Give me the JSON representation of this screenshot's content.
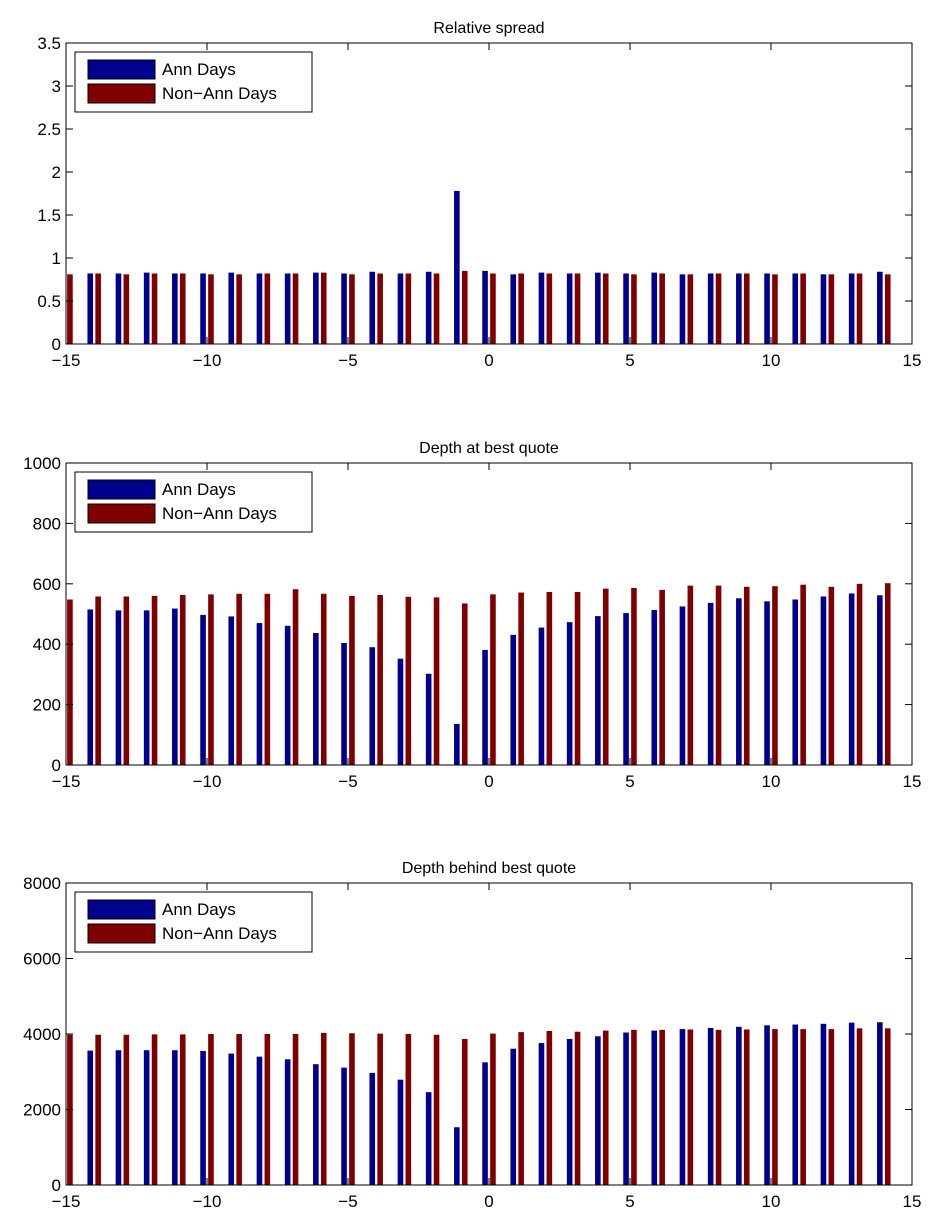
{
  "figure": {
    "background": "#ffffff"
  },
  "chart_data": [
    {
      "type": "bar",
      "title": "Relative spread",
      "xlabel": "",
      "ylabel": "",
      "xlim": [
        -15,
        15
      ],
      "ylim": [
        0,
        3.5
      ],
      "xticks": [
        "−15",
        "−10",
        "−5",
        "0",
        "5",
        "10",
        "15"
      ],
      "yticks": [
        "0",
        "0.5",
        "1",
        "1.5",
        "2",
        "2.5",
        "3",
        "3.5"
      ],
      "grid": false,
      "legend": "top-left",
      "x": [
        -15,
        -14,
        -13,
        -12,
        -11,
        -10,
        -9,
        -8,
        -7,
        -6,
        -5,
        -4,
        -3,
        -2,
        -1,
        0,
        1,
        2,
        3,
        4,
        5,
        6,
        7,
        8,
        9,
        10,
        11,
        12,
        13,
        14
      ],
      "series": [
        {
          "name": "Ann Days",
          "color": "#00008f",
          "values": [
            null,
            0.82,
            0.82,
            0.83,
            0.82,
            0.82,
            0.83,
            0.82,
            0.82,
            0.83,
            0.82,
            0.84,
            0.82,
            0.84,
            1.78,
            0.85,
            0.81,
            0.83,
            0.82,
            0.83,
            0.82,
            0.83,
            0.81,
            0.82,
            0.82,
            0.82,
            0.82,
            0.81,
            0.82,
            0.84
          ]
        },
        {
          "name": "Non−Ann Days",
          "color": "#800000",
          "values": [
            0.81,
            0.82,
            0.81,
            0.82,
            0.82,
            0.81,
            0.81,
            0.82,
            0.82,
            0.83,
            0.81,
            0.82,
            0.82,
            0.82,
            0.85,
            0.82,
            0.82,
            0.82,
            0.82,
            0.82,
            0.81,
            0.82,
            0.81,
            0.82,
            0.82,
            0.81,
            0.82,
            0.81,
            0.82,
            0.81
          ]
        }
      ]
    },
    {
      "type": "bar",
      "title": "Depth at best quote",
      "xlabel": "",
      "ylabel": "",
      "xlim": [
        -15,
        15
      ],
      "ylim": [
        0,
        1000
      ],
      "xticks": [
        "−15",
        "−10",
        "−5",
        "0",
        "5",
        "10",
        "15"
      ],
      "yticks": [
        "0",
        "200",
        "400",
        "600",
        "800",
        "1000"
      ],
      "grid": false,
      "legend": "top-left",
      "x": [
        -15,
        -14,
        -13,
        -12,
        -11,
        -10,
        -9,
        -8,
        -7,
        -6,
        -5,
        -4,
        -3,
        -2,
        -1,
        0,
        1,
        2,
        3,
        4,
        5,
        6,
        7,
        8,
        9,
        10,
        11,
        12,
        13,
        14
      ],
      "series": [
        {
          "name": "Ann Days",
          "color": "#00008f",
          "values": [
            null,
            515,
            512,
            512,
            518,
            497,
            492,
            470,
            461,
            437,
            404,
            390,
            352,
            302,
            136,
            381,
            431,
            455,
            473,
            493,
            503,
            513,
            525,
            537,
            552,
            542,
            548,
            558,
            568,
            562
          ]
        },
        {
          "name": "Non−Ann Days",
          "color": "#800000",
          "values": [
            548,
            558,
            558,
            560,
            563,
            565,
            567,
            567,
            582,
            567,
            560,
            563,
            557,
            555,
            535,
            565,
            571,
            573,
            573,
            584,
            586,
            580,
            594,
            594,
            590,
            592,
            597,
            590,
            600,
            602
          ]
        }
      ]
    },
    {
      "type": "bar",
      "title": "Depth behind best quote",
      "xlabel": "",
      "ylabel": "",
      "xlim": [
        -15,
        15
      ],
      "ylim": [
        0,
        8000
      ],
      "xticks": [
        "−15",
        "−10",
        "−5",
        "0",
        "5",
        "10",
        "15"
      ],
      "yticks": [
        "0",
        "2000",
        "4000",
        "6000",
        "8000"
      ],
      "grid": false,
      "legend": "top-left",
      "x": [
        -15,
        -14,
        -13,
        -12,
        -11,
        -10,
        -9,
        -8,
        -7,
        -6,
        -5,
        -4,
        -3,
        -2,
        -1,
        0,
        1,
        2,
        3,
        4,
        5,
        6,
        7,
        8,
        9,
        10,
        11,
        12,
        13,
        14
      ],
      "series": [
        {
          "name": "Ann Days",
          "color": "#00008f",
          "values": [
            null,
            3560,
            3570,
            3570,
            3570,
            3550,
            3480,
            3400,
            3330,
            3200,
            3110,
            2970,
            2790,
            2460,
            1530,
            3250,
            3610,
            3760,
            3870,
            3940,
            4040,
            4090,
            4130,
            4160,
            4190,
            4230,
            4250,
            4270,
            4300,
            4310
          ]
        },
        {
          "name": "Non−Ann Days",
          "color": "#800000",
          "values": [
            3980,
            3980,
            3980,
            3990,
            3990,
            4000,
            4000,
            4000,
            4000,
            4030,
            4020,
            4010,
            4000,
            3980,
            3870,
            4010,
            4050,
            4080,
            4060,
            4090,
            4110,
            4110,
            4120,
            4110,
            4120,
            4130,
            4130,
            4130,
            4150,
            4150
          ]
        }
      ]
    }
  ]
}
